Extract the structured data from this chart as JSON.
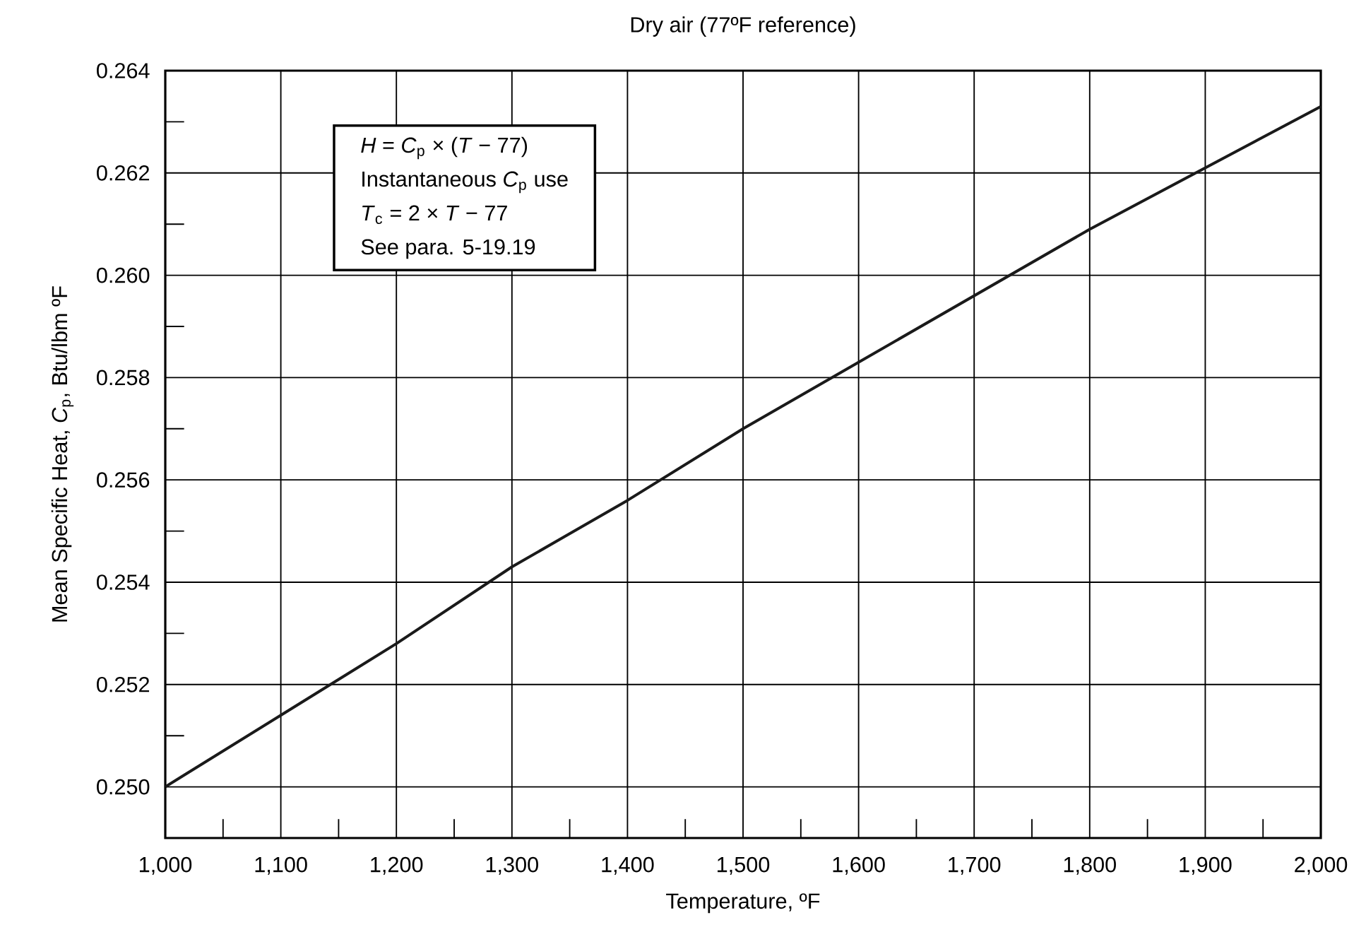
{
  "chart_data": {
    "type": "line",
    "title": "Dry air (77ºF reference)",
    "xlabel": "Temperature, ºF",
    "ylabel": "Mean Specific Heat, *C*$_{p}$, Btu/lbm ºF",
    "x": [
      1000,
      1100,
      1200,
      1300,
      1400,
      1500,
      1600,
      1700,
      1800,
      1900,
      2000
    ],
    "values": [
      0.25,
      0.2514,
      0.2528,
      0.2543,
      0.2556,
      0.257,
      0.2583,
      0.2596,
      0.2609,
      0.2621,
      0.2633
    ],
    "color": "#1a1a1a",
    "xlim": [
      1000,
      2000
    ],
    "ylim": [
      0.249,
      0.264
    ],
    "xticks": [
      {
        "value": 1000,
        "label": "1,000"
      },
      {
        "value": 1050,
        "label": null
      },
      {
        "value": 1100,
        "label": "1,100"
      },
      {
        "value": 1150,
        "label": null
      },
      {
        "value": 1200,
        "label": "1,200"
      },
      {
        "value": 1250,
        "label": null
      },
      {
        "value": 1300,
        "label": "1,300"
      },
      {
        "value": 1350,
        "label": null
      },
      {
        "value": 1400,
        "label": "1,400"
      },
      {
        "value": 1450,
        "label": null
      },
      {
        "value": 1500,
        "label": "1,500"
      },
      {
        "value": 1550,
        "label": null
      },
      {
        "value": 1600,
        "label": "1,600"
      },
      {
        "value": 1650,
        "label": null
      },
      {
        "value": 1700,
        "label": "1,700"
      },
      {
        "value": 1750,
        "label": null
      },
      {
        "value": 1800,
        "label": "1,800"
      },
      {
        "value": 1850,
        "label": null
      },
      {
        "value": 1900,
        "label": "1,900"
      },
      {
        "value": 1950,
        "label": null
      },
      {
        "value": 2000,
        "label": "2,000"
      }
    ],
    "yticks": [
      {
        "value": 0.25,
        "label": "0.250"
      },
      {
        "value": 0.251,
        "label": null
      },
      {
        "value": 0.252,
        "label": "0.252"
      },
      {
        "value": 0.253,
        "label": null
      },
      {
        "value": 0.254,
        "label": "0.254"
      },
      {
        "value": 0.255,
        "label": null
      },
      {
        "value": 0.256,
        "label": "0.256"
      },
      {
        "value": 0.257,
        "label": null
      },
      {
        "value": 0.258,
        "label": "0.258"
      },
      {
        "value": 0.259,
        "label": null
      },
      {
        "value": 0.26,
        "label": "0.260"
      },
      {
        "value": 0.261,
        "label": null
      },
      {
        "value": 0.262,
        "label": "0.262"
      },
      {
        "value": 0.263,
        "label": null
      },
      {
        "value": 0.264,
        "label": "0.264"
      }
    ],
    "grid": true,
    "marker": "none",
    "line_style": "solid",
    "annotations": [
      "*H* = *C*$_{p}$ × (*T* − 77)",
      "Instantaneous *C*$_{p}$ use",
      "*T*$_{c}$ = 2 × *T* − 77",
      "See para. 5-19.19"
    ]
  }
}
